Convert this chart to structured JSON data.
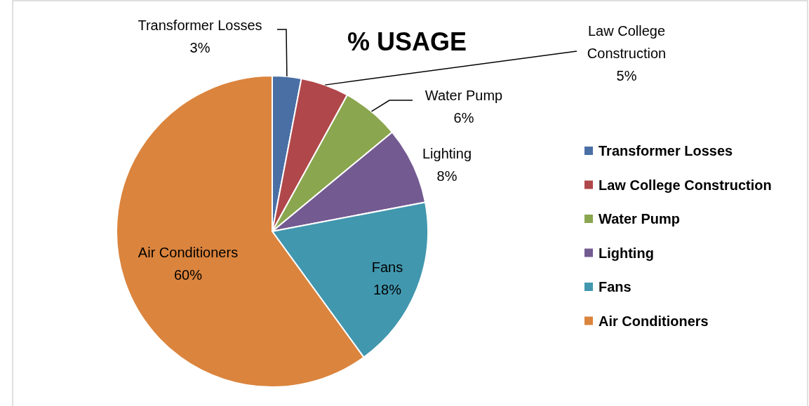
{
  "chart_data": {
    "type": "pie",
    "title": "% USAGE",
    "categories": [
      "Transformer Losses",
      "Law College Construction",
      "Water Pump",
      "Lighting",
      "Fans",
      "Air Conditioners"
    ],
    "values": [
      3,
      5,
      6,
      8,
      18,
      60
    ],
    "colors": [
      "#4a6fa5",
      "#b0474a",
      "#8aa64e",
      "#735a91",
      "#4197ae",
      "#db843d"
    ],
    "value_labels": [
      "3%",
      "5%",
      "6%",
      "8%",
      "18%",
      "60%"
    ],
    "legend": "right"
  }
}
